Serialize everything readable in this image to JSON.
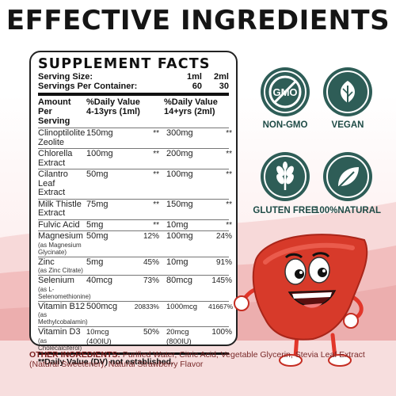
{
  "headline": "EFFECTIVE INGREDIENTS",
  "facts": {
    "title": "SUPPLEMENT FACTS",
    "serving_size_label": "Serving Size:",
    "serving_size_1": "1ml",
    "serving_size_2": "2ml",
    "servings_label": "Servings Per Container:",
    "servings_1": "60",
    "servings_2": "30",
    "col_amount": "Amount Per\nServing",
    "col_dv1": "%Daily Value\n4-13yrs (1ml)",
    "col_dv2": "%Daily Value\n14+yrs (2ml)",
    "rows": [
      {
        "name": "Clinoptilolite\nZeolite",
        "sub": "",
        "a1": "150mg",
        "d1": "**",
        "a2": "300mg",
        "d2": "**"
      },
      {
        "name": "Chlorella\nExtract",
        "sub": "",
        "a1": "100mg",
        "d1": "**",
        "a2": "200mg",
        "d2": "**"
      },
      {
        "name": "Cilantro Leaf\nExtract",
        "sub": "",
        "a1": "50mg",
        "d1": "**",
        "a2": "100mg",
        "d2": "**"
      },
      {
        "name": "Milk Thistle\nExtract",
        "sub": "",
        "a1": "75mg",
        "d1": "**",
        "a2": "150mg",
        "d2": "**"
      },
      {
        "name": "Fulvic Acid",
        "sub": "",
        "a1": "5mg",
        "d1": "**",
        "a2": "10mg",
        "d2": "**"
      },
      {
        "name": "Magnesium",
        "sub": "(as Magnesium Glycinate)",
        "a1": "50mg",
        "d1": "12%",
        "a2": "100mg",
        "d2": "24%"
      },
      {
        "name": "Zinc",
        "sub": "(as Zinc Citrate)",
        "a1": "5mg",
        "d1": "45%",
        "a2": "10mg",
        "d2": "91%"
      },
      {
        "name": "Selenium",
        "sub": "(as L-Selenomethionine)",
        "a1": "40mcg",
        "d1": "73%",
        "a2": "80mcg",
        "d2": "145%"
      },
      {
        "name": "Vitamin B12",
        "sub": "(as Methylcobalamin)",
        "a1": "500mcg",
        "d1": "20833%",
        "a2": "1000mcg",
        "d2": "41667%"
      },
      {
        "name": "Vitamin D3",
        "sub": "(as\nCholecalciferol)",
        "a1": "10mcg\n(400IU)",
        "d1": "50%",
        "a2": "20mcg\n(800IU)",
        "d2": "100%"
      }
    ],
    "footnote": "**Daily Value (DV) not established."
  },
  "badges": [
    {
      "icon": "gmo-icon",
      "label": "NON-GMO",
      "text": "GMO"
    },
    {
      "icon": "leaf-icon",
      "label": "VEGAN"
    },
    {
      "icon": "wheat-icon",
      "label": "GLUTEN FREE"
    },
    {
      "icon": "natural-leaf-icon",
      "label": "100%NATURAL"
    }
  ],
  "other": {
    "label": "OTHER INGREDIENTS:",
    "text": " Purified Water, Citric Acid, Vegetable Glycerin, Stevia Leaf Extract (Natural Sweetener), Natural Strawberry Flavor"
  },
  "colors": {
    "badge": "#2e5d57",
    "liver": "#d73a2a",
    "text_other": "#7a1c1c"
  }
}
